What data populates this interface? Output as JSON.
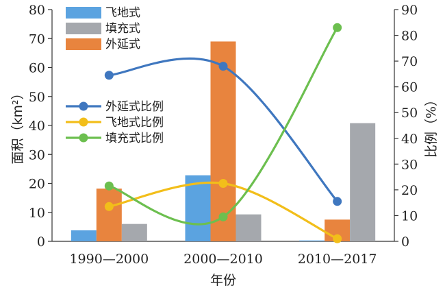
{
  "chart_data": {
    "type": "bar",
    "categories": [
      "1990—2000",
      "2000—2010",
      "2010—2017"
    ],
    "xlabel": "年份",
    "ylabel": "面积（km²）",
    "y2label": "比例（%）",
    "ylim": [
      0,
      80
    ],
    "y2lim": [
      0,
      90
    ],
    "yticks": [
      0,
      10,
      20,
      30,
      40,
      50,
      60,
      70,
      80
    ],
    "y2ticks": [
      0,
      10,
      20,
      30,
      40,
      50,
      60,
      70,
      80,
      90
    ],
    "grid": false,
    "bar_series": [
      {
        "name": "飞地式",
        "values": [
          3.8,
          22.8,
          0.3
        ],
        "color": "#5ba3e0"
      },
      {
        "name": "外延式",
        "values": [
          18.2,
          69.0,
          7.5
        ],
        "color": "#e8843e"
      },
      {
        "name": "填充式",
        "values": [
          6.0,
          9.3,
          40.8
        ],
        "color": "#a5a8ad"
      }
    ],
    "line_series": [
      {
        "name": "外延式比例",
        "values": [
          64.5,
          68.0,
          15.5
        ],
        "color": "#3f77bf",
        "axis": "right"
      },
      {
        "name": "飞地式比例",
        "values": [
          13.5,
          22.5,
          1.0
        ],
        "color": "#f2be1a",
        "axis": "right"
      },
      {
        "name": "填充式比例",
        "values": [
          21.5,
          9.5,
          83.0
        ],
        "color": "#6cbf4f",
        "axis": "right"
      }
    ],
    "bar_legend_order": [
      "飞地式",
      "填充式",
      "外延式"
    ],
    "line_legend_order": [
      "外延式比例",
      "飞地式比例",
      "填充式比例"
    ],
    "legend_position": "top-left"
  }
}
